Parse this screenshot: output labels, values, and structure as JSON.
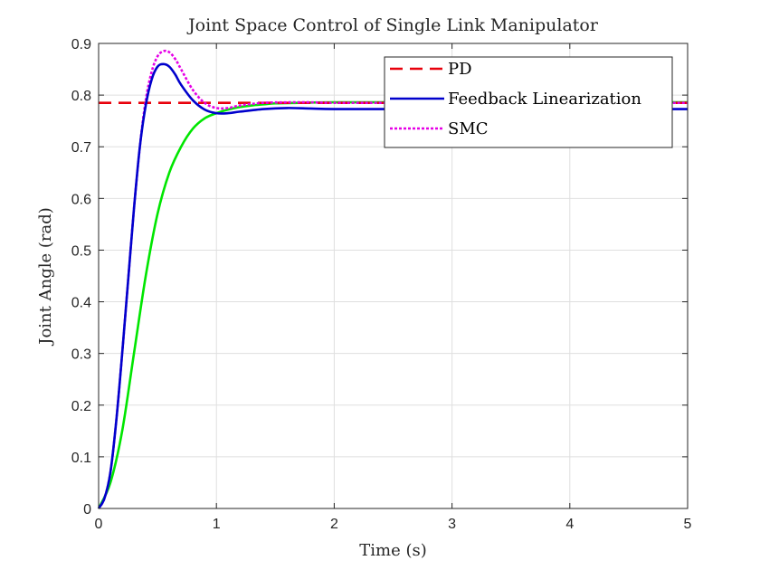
{
  "chart_data": {
    "type": "line",
    "title": "Joint Space Control of Single Link Manipulator",
    "xlabel": "Time (s)",
    "ylabel": "Joint Angle (rad)",
    "xlim": [
      0,
      5
    ],
    "ylim": [
      0,
      0.9
    ],
    "xticks": [
      0,
      1,
      2,
      3,
      4,
      5
    ],
    "xtick_labels": [
      "0",
      "1",
      "2",
      "3",
      "4",
      "5"
    ],
    "yticks": [
      0,
      0.1,
      0.2,
      0.3,
      0.4,
      0.5,
      0.6,
      0.7,
      0.8,
      0.9
    ],
    "ytick_labels": [
      "0",
      "0.1",
      "0.2",
      "0.3",
      "0.4",
      "0.5",
      "0.6",
      "0.7",
      "0.8",
      "0.9"
    ],
    "grid": true,
    "legend_position": "top-right",
    "series": [
      {
        "name": "PD",
        "color": "#e8000b",
        "style": "dashed",
        "in_legend": true,
        "x": [
          0,
          5
        ],
        "y": [
          0.785,
          0.785
        ]
      },
      {
        "name": "Feedback Linearization",
        "color": "#0000cc",
        "style": "solid",
        "in_legend": true,
        "x": [
          0,
          0.05,
          0.1,
          0.15,
          0.2,
          0.25,
          0.3,
          0.35,
          0.4,
          0.45,
          0.5,
          0.55,
          0.6,
          0.65,
          0.7,
          0.8,
          0.9,
          1.0,
          1.1,
          1.2,
          1.4,
          1.6,
          1.8,
          2.0,
          2.5,
          3.0,
          3.5,
          4.0,
          4.5,
          5.0
        ],
        "y": [
          0,
          0.02,
          0.07,
          0.17,
          0.3,
          0.44,
          0.58,
          0.7,
          0.78,
          0.83,
          0.855,
          0.86,
          0.855,
          0.84,
          0.82,
          0.79,
          0.772,
          0.765,
          0.765,
          0.768,
          0.773,
          0.775,
          0.774,
          0.773,
          0.773,
          0.773,
          0.773,
          0.773,
          0.773,
          0.773
        ]
      },
      {
        "name": "SMC",
        "color": "#e600e6",
        "style": "dotted",
        "in_legend": true,
        "x": [
          0,
          0.05,
          0.1,
          0.15,
          0.2,
          0.25,
          0.3,
          0.35,
          0.4,
          0.45,
          0.5,
          0.55,
          0.6,
          0.65,
          0.7,
          0.8,
          0.9,
          1.0,
          1.1,
          1.2,
          1.4,
          1.6,
          1.8,
          2.0,
          2.5,
          3.0,
          3.5,
          4.0,
          4.5,
          5.0
        ],
        "y": [
          0,
          0.02,
          0.07,
          0.17,
          0.3,
          0.44,
          0.58,
          0.7,
          0.79,
          0.845,
          0.875,
          0.885,
          0.883,
          0.87,
          0.85,
          0.81,
          0.785,
          0.775,
          0.775,
          0.78,
          0.785,
          0.786,
          0.786,
          0.785,
          0.785,
          0.785,
          0.785,
          0.785,
          0.785,
          0.785
        ]
      },
      {
        "color": "#00e600",
        "style": "solid",
        "in_legend": false,
        "x": [
          0,
          0.1,
          0.2,
          0.3,
          0.4,
          0.5,
          0.6,
          0.7,
          0.8,
          0.9,
          1.0,
          1.1,
          1.2,
          1.3,
          1.4,
          1.5,
          1.7,
          2.0,
          2.5,
          3.0,
          3.5,
          4.0,
          4.5,
          5.0
        ],
        "y": [
          0,
          0.05,
          0.15,
          0.3,
          0.45,
          0.57,
          0.65,
          0.7,
          0.735,
          0.755,
          0.765,
          0.772,
          0.777,
          0.78,
          0.782,
          0.784,
          0.785,
          0.786,
          0.786,
          0.786,
          0.786,
          0.786,
          0.786,
          0.786
        ]
      }
    ]
  }
}
